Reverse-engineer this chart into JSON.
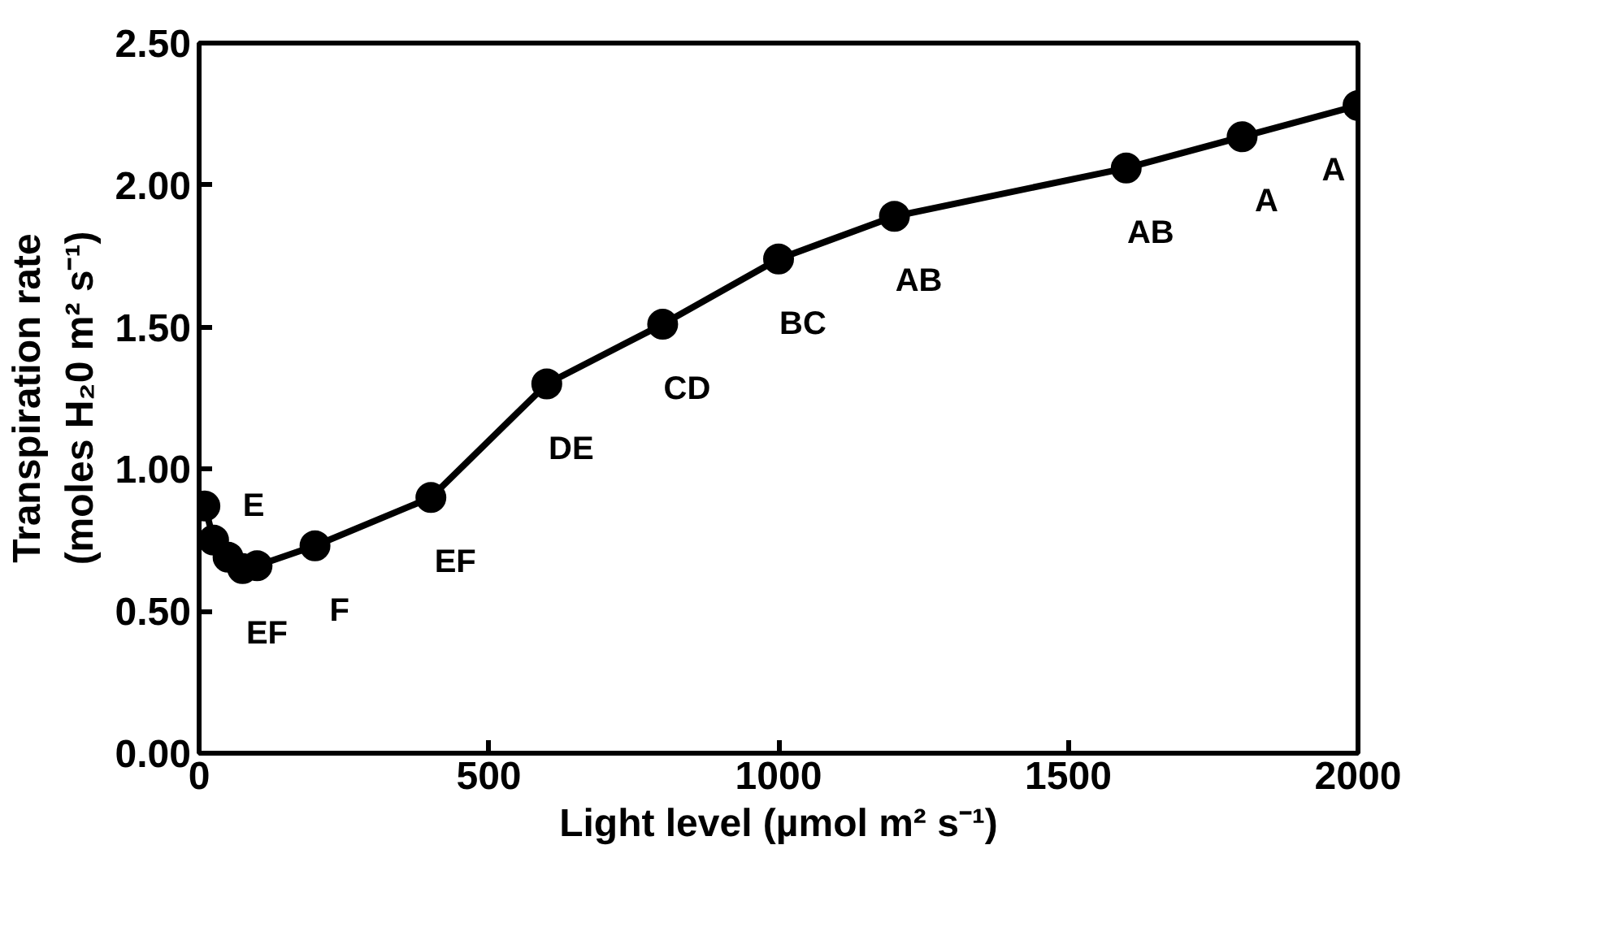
{
  "chart_data": {
    "type": "line",
    "xlabel": "Light level (µmol m² s⁻¹)",
    "ylabel": "Transpiration rate\n(moles H₂0 m² s⁻¹)",
    "x": [
      10,
      25,
      50,
      75,
      100,
      200,
      400,
      600,
      800,
      1000,
      1200,
      1600,
      1800,
      2000
    ],
    "series": [
      {
        "color": "#000000",
        "values": [
          0.87,
          0.75,
          0.69,
          0.65,
          0.66,
          0.73,
          0.9,
          1.3,
          1.51,
          1.74,
          1.89,
          2.06,
          2.17,
          2.28
        ]
      }
    ],
    "marker": "circle",
    "line_style": "solid",
    "xlim": [
      0,
      2000
    ],
    "ylim": [
      0,
      2.5
    ],
    "xticks": [
      0,
      500,
      1000,
      1500,
      2000
    ],
    "yticks": [
      {
        "value": 0,
        "label": "0.00"
      },
      {
        "value": 0.5,
        "label": "0.50"
      },
      {
        "value": 1,
        "label": "1.00"
      },
      {
        "value": 1.5,
        "label": "1.50"
      },
      {
        "value": 2,
        "label": "2.00"
      },
      {
        "value": 2.5,
        "label": "2.50"
      }
    ],
    "annotations": [
      {
        "text": "E",
        "x": 10,
        "y": 0.87
      },
      {
        "text": "EF",
        "x": 75,
        "y": 0.65
      },
      {
        "text": "F",
        "x": 200,
        "y": 0.73
      },
      {
        "text": "EF",
        "x": 400,
        "y": 0.9
      },
      {
        "text": "DE",
        "x": 600,
        "y": 1.3
      },
      {
        "text": "CD",
        "x": 800,
        "y": 1.51
      },
      {
        "text": "BC",
        "x": 1000,
        "y": 1.74
      },
      {
        "text": "AB",
        "x": 1200,
        "y": 1.89
      },
      {
        "text": "AB",
        "x": 1600,
        "y": 2.06
      },
      {
        "text": "A",
        "x": 1800,
        "y": 2.17
      },
      {
        "text": "A",
        "x": 2000,
        "y": 2.28
      }
    ]
  }
}
